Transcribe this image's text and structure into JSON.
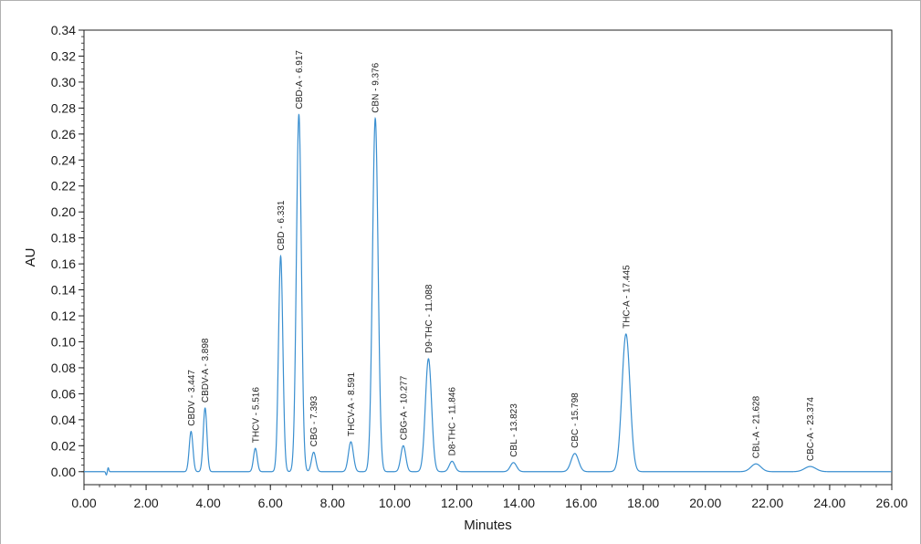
{
  "chart_data": {
    "type": "line",
    "xlabel": "Minutes",
    "ylabel": "AU",
    "xlim": [
      0,
      26
    ],
    "ylim": [
      -0.01,
      0.34
    ],
    "x_ticks": [
      "0.00",
      "2.00",
      "4.00",
      "6.00",
      "8.00",
      "10.00",
      "12.00",
      "14.00",
      "16.00",
      "18.00",
      "20.00",
      "22.00",
      "24.00",
      "26.00"
    ],
    "y_ticks": [
      "0.00",
      "0.02",
      "0.04",
      "0.06",
      "0.08",
      "0.10",
      "0.12",
      "0.14",
      "0.16",
      "0.18",
      "0.20",
      "0.22",
      "0.24",
      "0.26",
      "0.28",
      "0.30",
      "0.32",
      "0.34"
    ],
    "grid": false,
    "line_color": "#3a8fd0",
    "peaks": [
      {
        "label": "CBDV - 3.447",
        "rt": 3.447,
        "height": 0.031,
        "width": 0.06
      },
      {
        "label": "CBDV-A - 3.898",
        "rt": 3.898,
        "height": 0.049,
        "width": 0.06
      },
      {
        "label": "THCV - 5.516",
        "rt": 5.516,
        "height": 0.018,
        "width": 0.06
      },
      {
        "label": "CBD - 6.331",
        "rt": 6.331,
        "height": 0.166,
        "width": 0.07
      },
      {
        "label": "CBD-A - 6.917",
        "rt": 6.917,
        "height": 0.275,
        "width": 0.08
      },
      {
        "label": "CBG - 7.393",
        "rt": 7.393,
        "height": 0.015,
        "width": 0.07
      },
      {
        "label": "THCV-A - 8.591",
        "rt": 8.591,
        "height": 0.023,
        "width": 0.08
      },
      {
        "label": "CBN - 9.376",
        "rt": 9.376,
        "height": 0.272,
        "width": 0.09
      },
      {
        "label": "CBG-A - 10.277",
        "rt": 10.277,
        "height": 0.02,
        "width": 0.08
      },
      {
        "label": "D9-THC - 11.088",
        "rt": 11.088,
        "height": 0.087,
        "width": 0.1
      },
      {
        "label": "D8-THC - 11.846",
        "rt": 11.846,
        "height": 0.008,
        "width": 0.09
      },
      {
        "label": "CBL - 13.823",
        "rt": 13.823,
        "height": 0.007,
        "width": 0.1
      },
      {
        "label": "CBC - 15.798",
        "rt": 15.798,
        "height": 0.014,
        "width": 0.12
      },
      {
        "label": "THC-A - 17.445",
        "rt": 17.445,
        "height": 0.106,
        "width": 0.13
      },
      {
        "label": "CBL-A - 21.628",
        "rt": 21.628,
        "height": 0.006,
        "width": 0.16
      },
      {
        "label": "CBC-A - 23.374",
        "rt": 23.374,
        "height": 0.004,
        "width": 0.18
      }
    ]
  }
}
